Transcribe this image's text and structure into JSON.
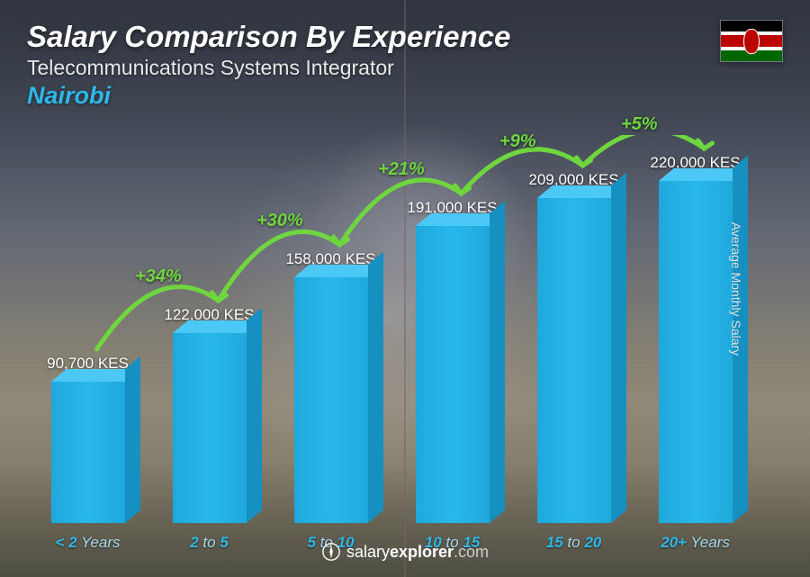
{
  "header": {
    "title": "Salary Comparison By Experience",
    "subtitle": "Telecommunications Systems Integrator",
    "location": "Nairobi"
  },
  "flag": {
    "country": "Kenya",
    "colors": {
      "black": "#000000",
      "white": "#ffffff",
      "red": "#bb0000",
      "green": "#006600"
    }
  },
  "yaxis_label": "Average Monthly Salary",
  "chart": {
    "type": "bar",
    "currency": "KES",
    "max_value": 220000,
    "bar_color": "#29b8ec",
    "bar_top_color": "#4bc8f5",
    "bar_side_color": "#1690c0",
    "pct_color": "#6fd63f",
    "value_color": "#ffffff",
    "xlabel_color": "#2db8e8",
    "title_fontsize": 33,
    "value_fontsize": 17,
    "pct_fontsize": 20,
    "xlabel_fontsize": 17,
    "bars": [
      {
        "xlabel_bold": "< 2",
        "xlabel_light": " Years",
        "value": 90700,
        "value_label": "90,700 KES",
        "pct_from_prev": null
      },
      {
        "xlabel_bold": "2",
        "xlabel_mid": " to ",
        "xlabel_bold2": "5",
        "value": 122000,
        "value_label": "122,000 KES",
        "pct_from_prev": "+34%"
      },
      {
        "xlabel_bold": "5",
        "xlabel_mid": " to ",
        "xlabel_bold2": "10",
        "value": 158000,
        "value_label": "158,000 KES",
        "pct_from_prev": "+30%"
      },
      {
        "xlabel_bold": "10",
        "xlabel_mid": " to ",
        "xlabel_bold2": "15",
        "value": 191000,
        "value_label": "191,000 KES",
        "pct_from_prev": "+21%"
      },
      {
        "xlabel_bold": "15",
        "xlabel_mid": " to ",
        "xlabel_bold2": "20",
        "value": 209000,
        "value_label": "209,000 KES",
        "pct_from_prev": "+9%"
      },
      {
        "xlabel_bold": "20+",
        "xlabel_light": " Years",
        "value": 220000,
        "value_label": "220,000 KES",
        "pct_from_prev": "+5%"
      }
    ]
  },
  "footer": {
    "brand": "salary",
    "brand2": "explorer",
    "domain": ".com"
  }
}
